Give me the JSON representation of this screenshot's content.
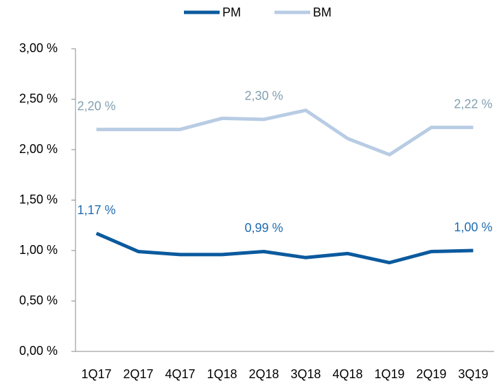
{
  "chart_data": {
    "type": "line",
    "categories": [
      "1Q17",
      "2Q17",
      "4Q17",
      "1Q18",
      "2Q18",
      "3Q18",
      "4Q18",
      "1Q19",
      "2Q19",
      "3Q19"
    ],
    "series": [
      {
        "name": "PM",
        "color": "#0b5a9e",
        "label_color": "#1f6bb0",
        "values": [
          1.17,
          0.99,
          0.96,
          0.96,
          0.99,
          0.93,
          0.97,
          0.88,
          0.99,
          1.0
        ],
        "value_labels": [
          "1,17 %",
          null,
          null,
          null,
          "0,99 %",
          null,
          null,
          null,
          null,
          "1,00 %"
        ]
      },
      {
        "name": "BM",
        "color": "#b8cce4",
        "label_color": "#809fb0",
        "values": [
          2.2,
          2.2,
          2.2,
          2.31,
          2.3,
          2.39,
          2.11,
          1.95,
          2.22,
          2.22
        ],
        "value_labels": [
          "2,20 %",
          null,
          null,
          null,
          "2,30 %",
          null,
          null,
          null,
          null,
          "2,22 %"
        ]
      }
    ],
    "ylim": [
      0,
      3
    ],
    "yticks": [
      {
        "value": 0,
        "label": "0,00 %"
      },
      {
        "value": 0.5,
        "label": "0,50 %"
      },
      {
        "value": 1,
        "label": "1,00 %"
      },
      {
        "value": 1.5,
        "label": "1,50 %"
      },
      {
        "value": 2,
        "label": "2,00 %"
      },
      {
        "value": 2.5,
        "label": "2,50 %"
      },
      {
        "value": 3,
        "label": "3,00 %"
      }
    ],
    "grid": false,
    "legend": "top"
  }
}
